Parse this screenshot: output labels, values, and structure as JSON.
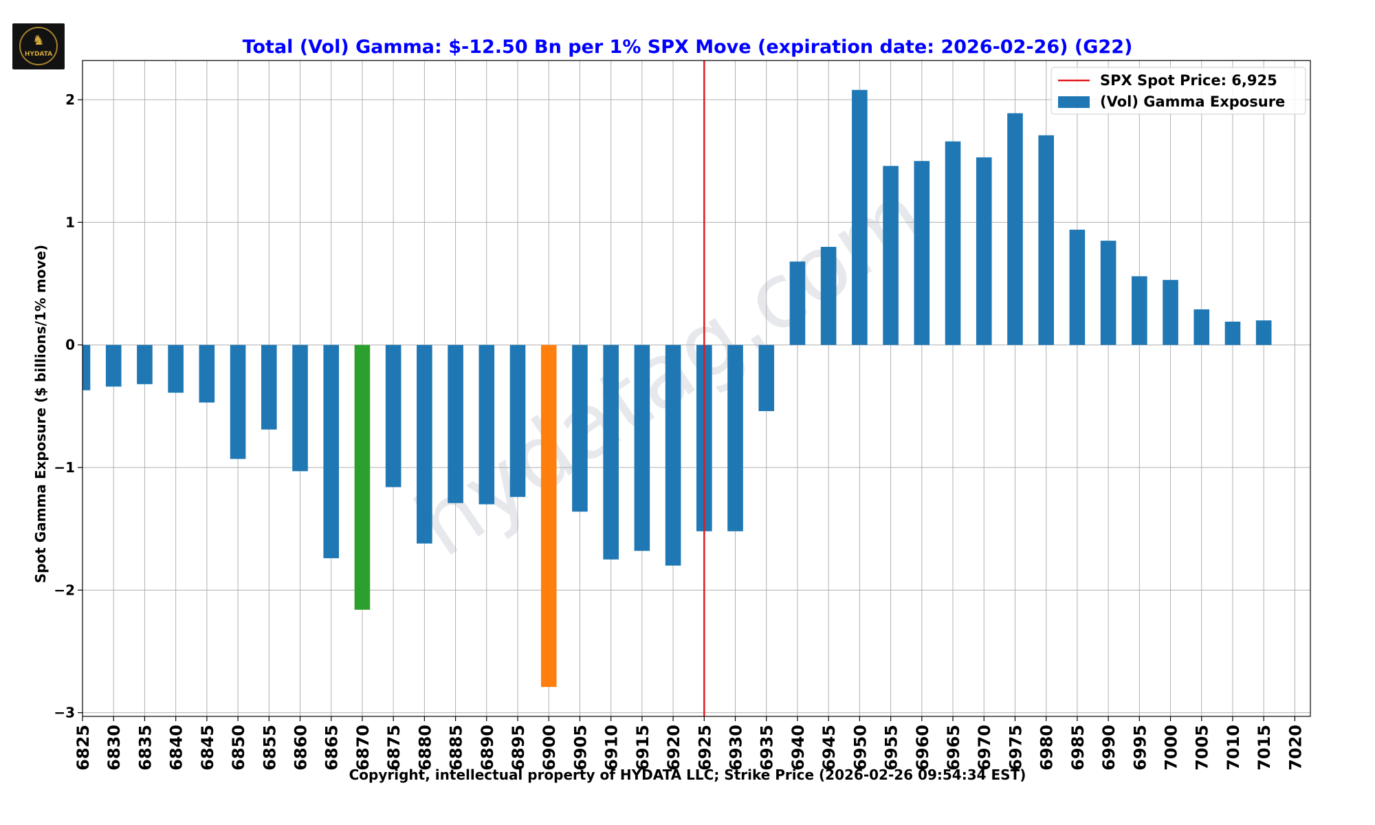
{
  "logo": {
    "text": "HYDATA",
    "icon": "hydata-logo-icon"
  },
  "watermark": "hydatag.com",
  "chart_data": {
    "type": "bar",
    "title": "Total (Vol) Gamma: $-12.50 Bn per 1% SPX Move (expiration date: 2026-02-26) (G22)",
    "xlabel": "Copyright, intellectual property of HYDATA LLC; Strike Price (2026-02-26 09:54:34 EST)",
    "ylabel": "Spot Gamma Exposure ($ billions/1% move)",
    "ylim": [
      -3.03,
      2.32
    ],
    "yticks": [
      -3,
      -2,
      -1,
      0,
      1,
      2
    ],
    "ytick_labels": [
      "−3",
      "−2",
      "−1",
      "0",
      "1",
      "2"
    ],
    "grid": true,
    "categories": [
      "6825",
      "6830",
      "6835",
      "6840",
      "6845",
      "6850",
      "6855",
      "6860",
      "6865",
      "6870",
      "6875",
      "6880",
      "6885",
      "6890",
      "6895",
      "6900",
      "6905",
      "6910",
      "6915",
      "6920",
      "6925",
      "6930",
      "6935",
      "6940",
      "6945",
      "6950",
      "6955",
      "6960",
      "6965",
      "6970",
      "6975",
      "6980",
      "6985",
      "6990",
      "6995",
      "7000",
      "7005",
      "7010",
      "7015",
      "7020"
    ],
    "series": [
      {
        "name": "(Vol) Gamma Exposure",
        "color": "#1f77b4",
        "values": [
          -0.37,
          -0.34,
          -0.32,
          -0.39,
          -0.47,
          -0.93,
          -0.69,
          -1.03,
          -1.74,
          -2.16,
          -1.16,
          -1.62,
          -1.29,
          -1.3,
          -1.24,
          -2.79,
          -1.36,
          -1.75,
          -1.68,
          -1.8,
          -1.52,
          -1.52,
          -0.54,
          0.68,
          0.8,
          2.08,
          1.46,
          1.5,
          1.66,
          1.53,
          1.89,
          1.71,
          0.94,
          0.85,
          0.56,
          0.53,
          0.29,
          0.19,
          0.2,
          0.0
        ]
      }
    ],
    "highlights": [
      {
        "category": "6870",
        "color": "#2ca02c"
      },
      {
        "category": "6900",
        "color": "#ff7f0e"
      }
    ],
    "spot_line": {
      "value": "6925",
      "color": "#e31a1c",
      "label": "SPX Spot Price: 6,925"
    },
    "legend": {
      "position": "top-right",
      "entries": [
        {
          "label": "SPX Spot Price: 6,925",
          "kind": "line",
          "color": "#e31a1c"
        },
        {
          "label": "(Vol) Gamma Exposure",
          "kind": "patch",
          "color": "#1f77b4"
        }
      ]
    },
    "title_color": "#0000ff"
  }
}
